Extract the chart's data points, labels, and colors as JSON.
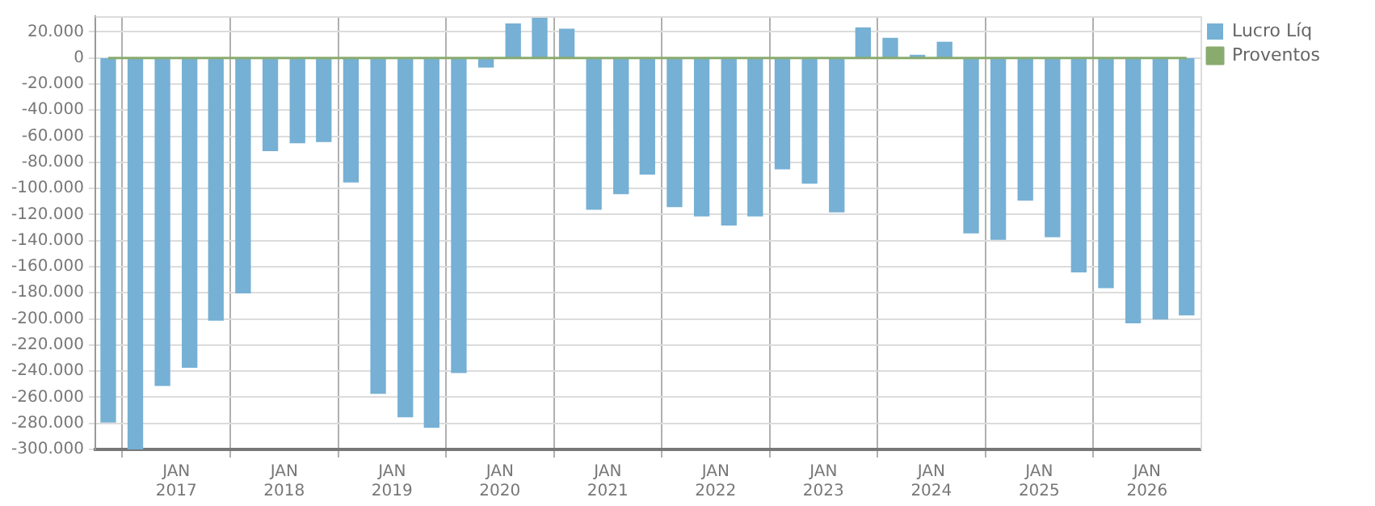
{
  "chart_data": {
    "type": "bar",
    "x": [
      "2016-05-15",
      "2016-08-15",
      "2016-11-15",
      "2017-02-15",
      "2017-05-15",
      "2017-08-15",
      "2017-11-15",
      "2018-02-15",
      "2018-05-15",
      "2018-08-15",
      "2018-11-15",
      "2019-02-15",
      "2019-05-15",
      "2019-08-15",
      "2019-11-15",
      "2020-02-15",
      "2020-05-15",
      "2020-08-15",
      "2020-11-15",
      "2021-02-15",
      "2021-05-15",
      "2021-08-15",
      "2021-11-15",
      "2022-02-15",
      "2022-05-15",
      "2022-08-15",
      "2022-11-15",
      "2023-02-15",
      "2023-05-15",
      "2023-08-15",
      "2023-11-15",
      "2024-02-15",
      "2024-05-15",
      "2024-08-15",
      "2024-11-15",
      "2025-02-15",
      "2025-05-15",
      "2025-08-15",
      "2025-11-15",
      "2026-02-15",
      "2026-05-15"
    ],
    "series": [
      {
        "name": "Lucro Líq",
        "color": "#76b0d4",
        "values": [
          -279000,
          -300000,
          -251000,
          -237000,
          -201000,
          -180000,
          -71000,
          -65000,
          -64000,
          -95000,
          -257000,
          -275000,
          -283000,
          -241000,
          -7000,
          26000,
          31000,
          22000,
          -116000,
          -104000,
          -89000,
          -114000,
          -121000,
          -128000,
          -121000,
          -85000,
          -96000,
          -118000,
          23000,
          15000,
          2000,
          12000,
          -134000,
          -139000,
          -109000,
          -137000,
          -164000,
          -176000,
          -203000,
          -200000,
          -197000
        ]
      },
      {
        "name": "Proventos",
        "type": "line",
        "color": "#8aab6e",
        "values": [
          0,
          0,
          0,
          0,
          0,
          0,
          0,
          0,
          0,
          0,
          0,
          0,
          0,
          0,
          0,
          0,
          0,
          0,
          0,
          0,
          0,
          0,
          0,
          0,
          0,
          0,
          0,
          0,
          0,
          0,
          0,
          0,
          0,
          0,
          0,
          0,
          0,
          0,
          0,
          0,
          0
        ]
      }
    ],
    "xlim": [
      "2016-04-01",
      "2026-07-01"
    ],
    "xticks": [
      {
        "value": "2017-01-01",
        "label": "JAN 2017"
      },
      {
        "value": "2018-01-01",
        "label": "JAN 2018"
      },
      {
        "value": "2019-01-01",
        "label": "JAN 2019"
      },
      {
        "value": "2020-01-01",
        "label": "JAN 2020"
      },
      {
        "value": "2021-01-01",
        "label": "JAN 2021"
      },
      {
        "value": "2022-01-01",
        "label": "JAN 2022"
      },
      {
        "value": "2023-01-01",
        "label": "JAN 2023"
      },
      {
        "value": "2024-01-01",
        "label": "JAN 2024"
      },
      {
        "value": "2025-01-01",
        "label": "JAN 2025"
      },
      {
        "value": "2026-01-01",
        "label": "JAN 2026"
      }
    ],
    "ylim": [
      -300000,
      32000
    ],
    "yticks": [
      {
        "value": 20000,
        "label": "20.000"
      },
      0,
      {
        "value": -20000,
        "label": "-20.000"
      },
      {
        "value": -40000,
        "label": "-40.000"
      },
      {
        "value": -60000,
        "label": "-60.000"
      },
      {
        "value": -80000,
        "label": "-80.000"
      },
      {
        "value": -100000,
        "label": "-100.000"
      },
      {
        "value": -120000,
        "label": "-120.000"
      },
      {
        "value": -140000,
        "label": "-140.000"
      },
      {
        "value": -160000,
        "label": "-160.000"
      },
      {
        "value": -180000,
        "label": "-180.000"
      },
      {
        "value": -200000,
        "label": "-200.000"
      },
      {
        "value": -220000,
        "label": "-220.000"
      },
      {
        "value": -240000,
        "label": "-240.000"
      },
      {
        "value": -260000,
        "label": "-260.000"
      },
      {
        "value": -280000,
        "label": "-280.000"
      },
      {
        "value": -300000,
        "label": "-300.000"
      }
    ],
    "grid": true,
    "legend": "top right",
    "marker": "none"
  }
}
